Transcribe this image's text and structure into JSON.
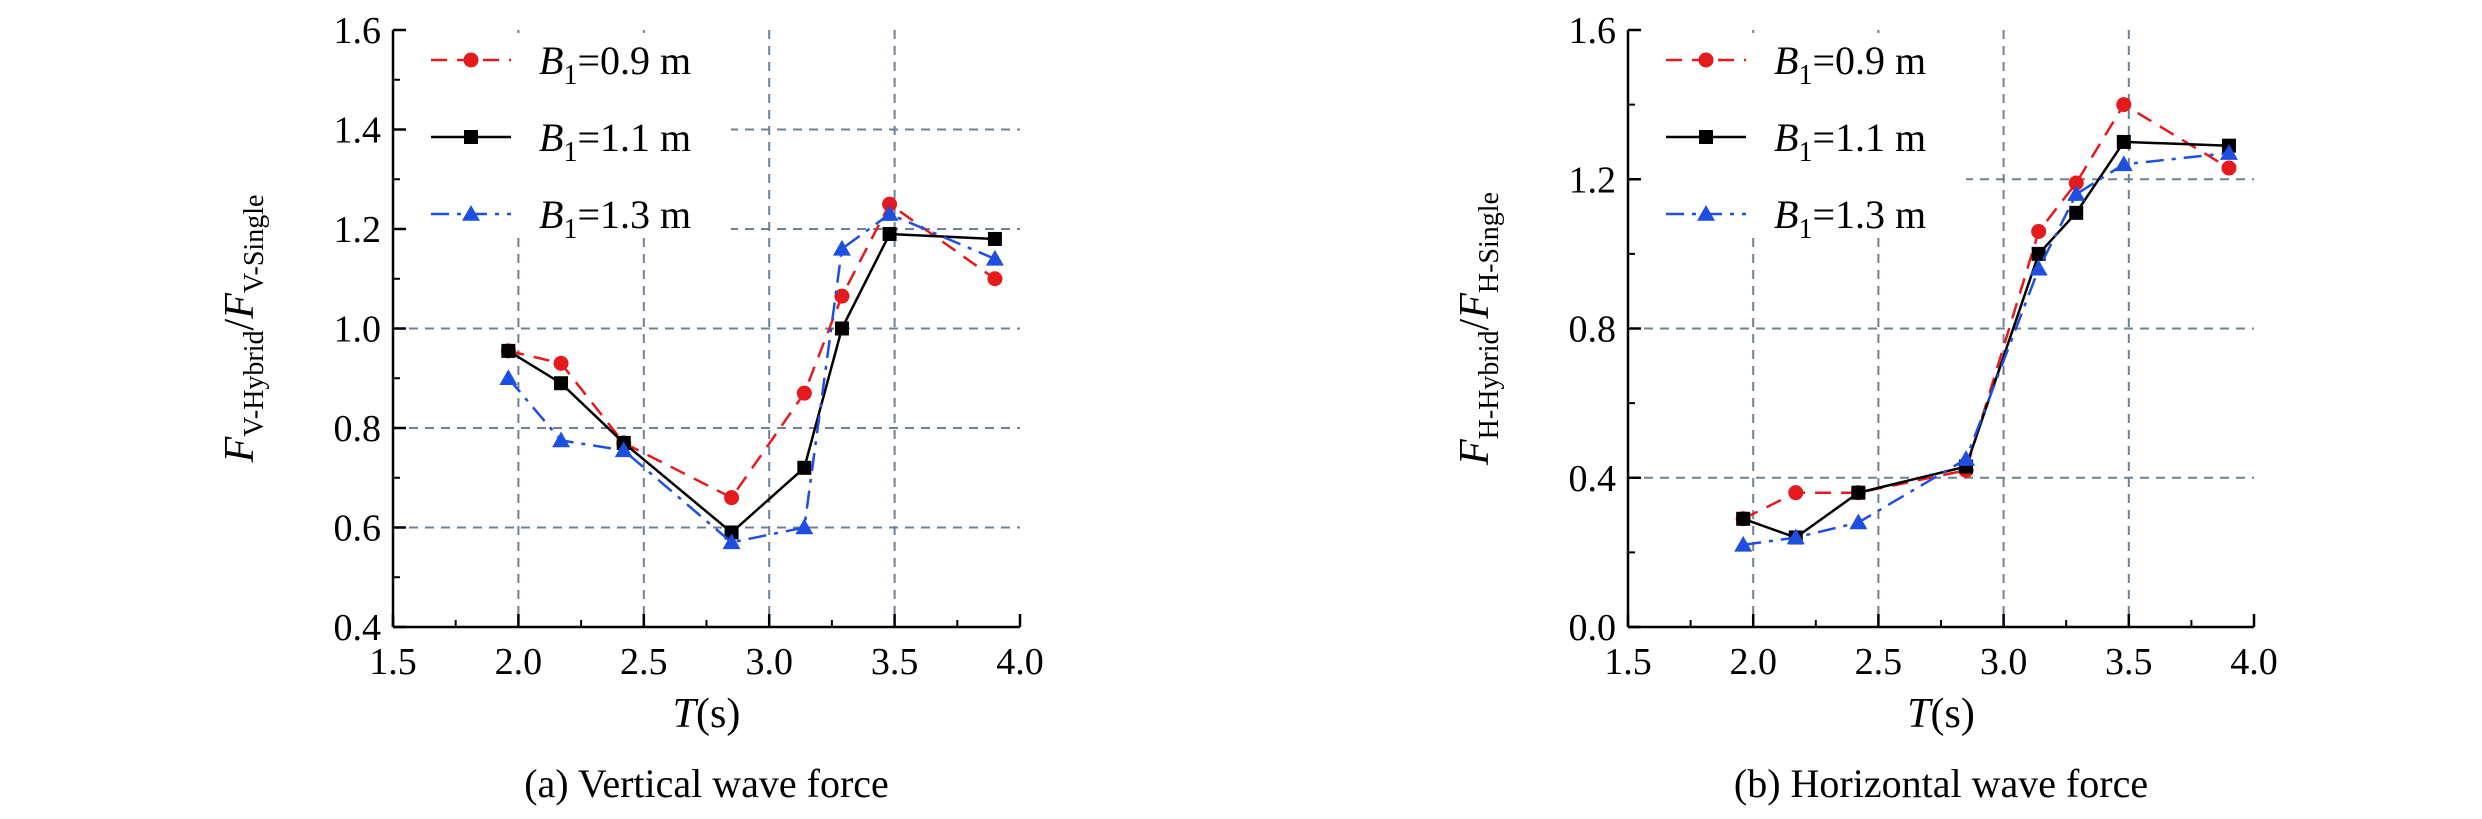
{
  "chart_data": [
    {
      "type": "line",
      "caption": "(a) Vertical wave force",
      "xlabel": "T",
      "xlabel_unit": "(s)",
      "ylabel_main": "F",
      "ylabel_num_sub": "V-Hybrid",
      "ylabel_den_sub": "V-Single",
      "xlim": [
        1.5,
        4.0
      ],
      "ylim": [
        0.4,
        1.6
      ],
      "xticks": [
        "1.5",
        "2.0",
        "2.5",
        "3.0",
        "3.5",
        "4.0"
      ],
      "yticks": [
        "0.4",
        "0.6",
        "0.8",
        "1.0",
        "1.2",
        "1.4",
        "1.6"
      ],
      "grid": "dashed",
      "legend_position": "top-left",
      "x": [
        1.96,
        2.17,
        2.42,
        2.85,
        3.14,
        3.29,
        3.48,
        3.9
      ],
      "series": [
        {
          "name": "B1=0.9 m",
          "legend_var": "B",
          "legend_sub": "1",
          "legend_val": "=0.9 m",
          "marker": "circle",
          "color": "#e41a1c",
          "dash": "dash",
          "values": [
            0.955,
            0.93,
            0.77,
            0.66,
            0.87,
            1.065,
            1.25,
            1.1
          ]
        },
        {
          "name": "B1=1.1 m",
          "legend_var": "B",
          "legend_sub": "1",
          "legend_val": "=1.1 m",
          "marker": "square",
          "color": "#000000",
          "dash": "solid",
          "values": [
            0.955,
            0.89,
            0.77,
            0.59,
            0.72,
            1.0,
            1.19,
            1.18
          ]
        },
        {
          "name": "B1=1.3 m",
          "legend_var": "B",
          "legend_sub": "1",
          "legend_val": "=1.3 m",
          "marker": "triangle",
          "color": "#1f4fe0",
          "dash": "dashdot",
          "values": [
            0.9,
            0.775,
            0.755,
            0.57,
            0.6,
            1.16,
            1.23,
            1.14
          ]
        }
      ]
    },
    {
      "type": "line",
      "caption": "(b) Horizontal wave force",
      "xlabel": "T",
      "xlabel_unit": "(s)",
      "ylabel_main": "F",
      "ylabel_num_sub": "H-Hybrid",
      "ylabel_den_sub": "H-Single",
      "xlim": [
        1.5,
        4.0
      ],
      "ylim": [
        0.0,
        1.6
      ],
      "xticks": [
        "1.5",
        "2.0",
        "2.5",
        "3.0",
        "3.5",
        "4.0"
      ],
      "yticks": [
        "0.0",
        "0.4",
        "0.8",
        "1.2",
        "1.6"
      ],
      "grid": "dashed",
      "legend_position": "top-left",
      "x": [
        1.96,
        2.17,
        2.42,
        2.85,
        3.14,
        3.29,
        3.48,
        3.9
      ],
      "series": [
        {
          "name": "B1=0.9 m",
          "legend_var": "B",
          "legend_sub": "1",
          "legend_val": "=0.9 m",
          "marker": "circle",
          "color": "#e41a1c",
          "dash": "dash",
          "values": [
            0.29,
            0.36,
            0.36,
            0.42,
            1.06,
            1.19,
            1.4,
            1.23
          ]
        },
        {
          "name": "B1=1.1 m",
          "legend_var": "B",
          "legend_sub": "1",
          "legend_val": "=1.1 m",
          "marker": "square",
          "color": "#000000",
          "dash": "solid",
          "values": [
            0.29,
            0.24,
            0.36,
            0.43,
            1.0,
            1.11,
            1.3,
            1.29
          ]
        },
        {
          "name": "B1=1.3 m",
          "legend_var": "B",
          "legend_sub": "1",
          "legend_val": "=1.3 m",
          "marker": "triangle",
          "color": "#1f4fe0",
          "dash": "dashdot",
          "values": [
            0.22,
            0.24,
            0.28,
            0.45,
            0.96,
            1.16,
            1.24,
            1.27
          ]
        }
      ]
    }
  ]
}
